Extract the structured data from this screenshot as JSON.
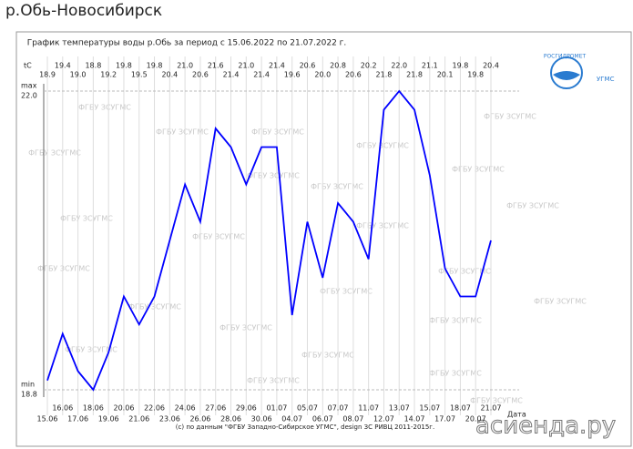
{
  "page_title": "р.Обь-Новосибирск",
  "chart_data": {
    "type": "line",
    "title": "График температуры воды р.Обь за период с 15.06.2022 по 21.07.2022 г.",
    "y_unit": "tC",
    "x_label": "Дата",
    "max_label": "max",
    "min_label": "min",
    "footer": "(с) по данным \"ФГБУ Западно-Сибирское УГМС\", design ЗС РИВЦ 2011-2015г.",
    "watermark": "ФГБУ ЗСУГМС",
    "logo_top": "РОСГИДРОМЕТ",
    "logo_bottom": "УГМС",
    "site_mark": "асиенда.ру",
    "categories": [
      "15.06",
      "16.06",
      "17.06",
      "18.06",
      "19.06",
      "20.06",
      "21.06",
      "22.06",
      "23.06",
      "24.06",
      "26.06",
      "27.06",
      "28.06",
      "29.06",
      "30.06",
      "01.07",
      "04.07",
      "05.07",
      "06.07",
      "07.07",
      "08.07",
      "11.07",
      "12.07",
      "13.07",
      "14.07",
      "15.07",
      "17.07",
      "18.07",
      "20.07",
      "21.07"
    ],
    "values": [
      18.9,
      19.4,
      19.0,
      18.8,
      19.2,
      19.8,
      19.5,
      19.8,
      20.4,
      21.0,
      20.6,
      21.6,
      21.4,
      21.0,
      21.4,
      21.4,
      19.6,
      20.6,
      20.0,
      20.8,
      20.6,
      20.2,
      21.8,
      22.0,
      21.8,
      21.1,
      20.1,
      19.8,
      19.8,
      20.4
    ],
    "value_labels": [
      "18.9",
      "19.4",
      "19.0",
      "18.8",
      "19.2",
      "19.8",
      "19.5",
      "19.8",
      "20.4",
      "21.0",
      "20.6",
      "21.6",
      "21.4",
      "21.0",
      "21.4",
      "21.4",
      "19.6",
      "20.6",
      "20.0",
      "20.8",
      "20.6",
      "20.2",
      "21.8",
      "22.0",
      "21.8",
      "21.1",
      "20.1",
      "19.8",
      "19.8",
      "20.4"
    ],
    "color": "#0000ff",
    "ylim": [
      18.8,
      22.0
    ],
    "yticks": [
      {
        "value": 18.8,
        "label": "18.8"
      },
      {
        "value": 22,
        "label": "22.0"
      }
    ],
    "grid": true
  }
}
